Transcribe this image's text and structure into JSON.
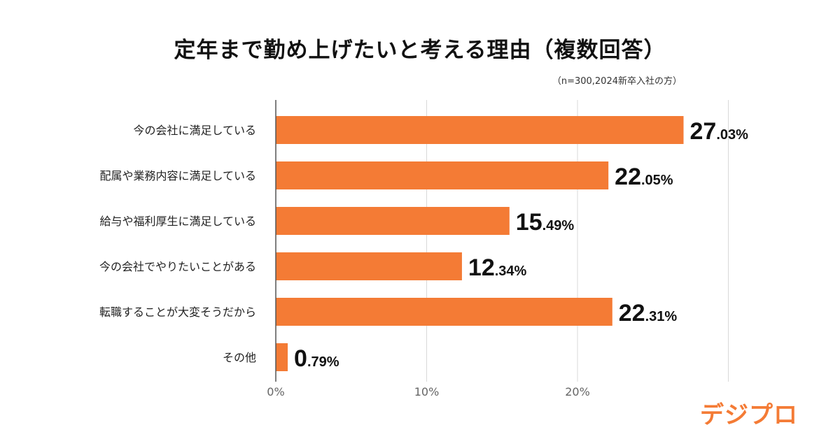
{
  "title": "定年まで勤め上げたいと考える理由（複数回答）",
  "subtitle": "（n=300,2024新卒入社の方）",
  "logo_text": "デジプロ",
  "colors": {
    "bar": "#f47b35",
    "axis": "#555555",
    "grid": "#d9d9d9",
    "logo": "#f47b35"
  },
  "chart_data": {
    "type": "bar",
    "orientation": "horizontal",
    "categories": [
      "今の会社に満足している",
      "配属や業務内容に満足している",
      "給与や福利厚生に満足している",
      "今の会社でやりたいことがある",
      "転職することが大変そうだから",
      "その他"
    ],
    "values": [
      27.03,
      22.05,
      15.49,
      12.34,
      22.31,
      0.79
    ],
    "value_labels": [
      {
        "int": "27",
        "dec": ".03%"
      },
      {
        "int": "22",
        "dec": ".05%"
      },
      {
        "int": "15",
        "dec": ".49%"
      },
      {
        "int": "12",
        "dec": ".34%"
      },
      {
        "int": "22",
        "dec": ".31%"
      },
      {
        "int": "0",
        "dec": ".79%"
      }
    ],
    "xticks": [
      "0%",
      "10%",
      "20%"
    ],
    "xtick_values": [
      0,
      10,
      20,
      30
    ],
    "xlim": [
      0,
      30
    ],
    "grid": true
  }
}
